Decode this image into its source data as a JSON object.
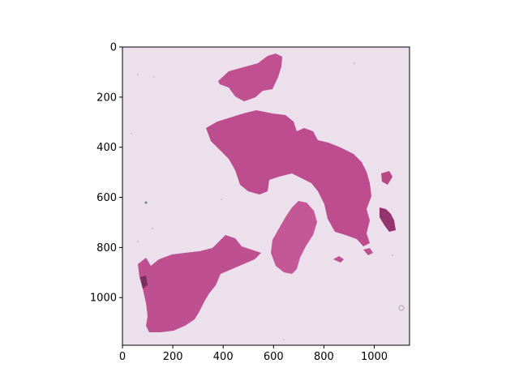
{
  "figure": {
    "image_subject": "H&E stained tissue section (pink/purple tissue fragments on pale background)",
    "background_color": "#ebe0ec",
    "tissue_colors": [
      "#c2508e",
      "#b8447f",
      "#d0709f",
      "#9a2f6a"
    ],
    "x_axis": {
      "range": [
        0,
        1140
      ],
      "ticks": [
        0,
        200,
        400,
        600,
        800,
        1000
      ],
      "tick_labels": [
        "0",
        "200",
        "400",
        "600",
        "800",
        "1000"
      ]
    },
    "y_axis": {
      "range": [
        0,
        1190
      ],
      "inverted": true,
      "ticks": [
        0,
        200,
        400,
        600,
        800,
        1000
      ],
      "tick_labels": [
        "0",
        "200",
        "400",
        "600",
        "800",
        "1000"
      ]
    },
    "grid": false
  }
}
